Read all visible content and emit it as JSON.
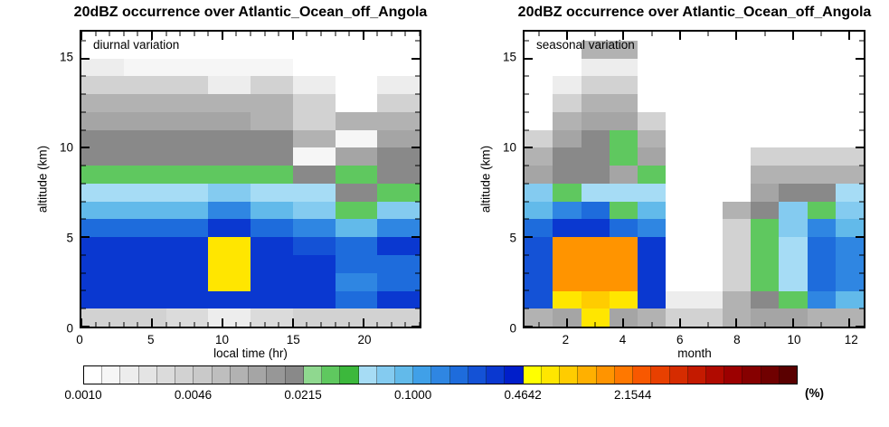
{
  "page": {
    "background": "#ffffff"
  },
  "chart_data": [
    {
      "type": "heatmap",
      "title": "20dBZ occurrence over Atlantic_Ocean_off_Angola",
      "annotation": "diurnal variation",
      "xlabel": "local time (hr)",
      "ylabel": "altitude (km)",
      "x_range": [
        0,
        24
      ],
      "y_range": [
        0,
        16.5
      ],
      "x_major_ticks": [
        0,
        5,
        10,
        15,
        20
      ],
      "x_minor_step": 1,
      "y_major_ticks": [
        0,
        5,
        10,
        15
      ],
      "y_minor_step": 1,
      "x_edges": [
        0,
        3,
        6,
        9,
        12,
        15,
        18,
        21,
        24
      ],
      "y_edges": [
        0,
        1,
        2,
        3,
        4,
        5,
        6,
        7,
        8,
        9,
        10,
        11,
        12,
        13,
        14,
        15,
        16
      ],
      "values_percent_rows_bottom_to_top": [
        [
          0.004,
          0.004,
          0.003,
          0.002,
          0.003,
          0.004,
          0.004,
          0.004
        ],
        [
          0.3,
          0.3,
          0.3,
          0.3,
          0.3,
          0.3,
          0.2,
          0.3
        ],
        [
          0.3,
          0.3,
          0.3,
          0.6,
          0.3,
          0.3,
          0.13,
          0.2
        ],
        [
          0.3,
          0.3,
          0.3,
          0.6,
          0.3,
          0.3,
          0.2,
          0.2
        ],
        [
          0.3,
          0.3,
          0.3,
          0.6,
          0.3,
          0.25,
          0.2,
          0.3
        ],
        [
          0.2,
          0.2,
          0.2,
          0.3,
          0.2,
          0.13,
          0.09,
          0.13
        ],
        [
          0.09,
          0.09,
          0.09,
          0.13,
          0.09,
          0.07,
          0.035,
          0.07
        ],
        [
          0.05,
          0.05,
          0.05,
          0.07,
          0.05,
          0.05,
          0.018,
          0.035
        ],
        [
          0.035,
          0.035,
          0.035,
          0.035,
          0.035,
          0.018,
          0.035,
          0.018
        ],
        [
          0.018,
          0.018,
          0.018,
          0.018,
          0.018,
          0.0015,
          0.012,
          0.018
        ],
        [
          0.018,
          0.018,
          0.018,
          0.018,
          0.018,
          0.008,
          0.0015,
          0.012
        ],
        [
          0.012,
          0.012,
          0.012,
          0.012,
          0.008,
          0.004,
          0.008,
          0.008
        ],
        [
          0.008,
          0.008,
          0.008,
          0.008,
          0.008,
          0.004,
          null,
          0.004
        ],
        [
          0.004,
          0.004,
          0.004,
          0.002,
          0.004,
          0.002,
          null,
          0.002
        ],
        [
          0.002,
          0.0015,
          0.0015,
          0.0015,
          0.0015,
          null,
          null,
          null
        ],
        [
          null,
          null,
          null,
          null,
          null,
          null,
          null,
          null
        ]
      ]
    },
    {
      "type": "heatmap",
      "title": "20dBZ occurrence over Atlantic_Ocean_off_Angola",
      "annotation": "seasonal variation",
      "xlabel": "month",
      "ylabel": "altitude (km)",
      "x_range": [
        0.5,
        12.5
      ],
      "y_range": [
        0,
        16.5
      ],
      "x_major_ticks": [
        2,
        4,
        6,
        8,
        10,
        12
      ],
      "x_minor_step": 1,
      "y_major_ticks": [
        0,
        5,
        10,
        15
      ],
      "y_minor_step": 1,
      "x_edges": [
        0.5,
        1.5,
        2.5,
        3.5,
        4.5,
        5.5,
        6.5,
        7.5,
        8.5,
        9.5,
        10.5,
        11.5,
        12.5
      ],
      "y_edges": [
        0,
        1,
        2,
        3,
        4,
        5,
        6,
        7,
        8,
        9,
        10,
        11,
        12,
        13,
        14,
        15,
        16
      ],
      "values_percent_rows_bottom_to_top": [
        [
          0.008,
          0.012,
          0.6,
          0.012,
          0.008,
          0.004,
          0.004,
          0.008,
          0.012,
          0.012,
          0.008,
          0.008
        ],
        [
          0.25,
          0.6,
          0.9,
          0.6,
          0.3,
          0.002,
          0.002,
          0.008,
          0.018,
          0.035,
          0.13,
          0.09
        ],
        [
          0.25,
          1.5,
          1.5,
          1.5,
          0.3,
          null,
          null,
          0.004,
          0.035,
          0.05,
          0.2,
          0.13
        ],
        [
          0.25,
          1.5,
          1.5,
          1.5,
          0.3,
          null,
          null,
          0.004,
          0.035,
          0.05,
          0.2,
          0.13
        ],
        [
          0.25,
          1.5,
          1.5,
          1.5,
          0.3,
          null,
          null,
          0.004,
          0.035,
          0.05,
          0.2,
          0.13
        ],
        [
          0.2,
          0.3,
          0.3,
          0.2,
          0.13,
          null,
          null,
          0.004,
          0.035,
          0.07,
          0.13,
          0.09
        ],
        [
          0.09,
          0.13,
          0.2,
          0.035,
          0.09,
          null,
          null,
          0.008,
          0.018,
          0.07,
          0.035,
          0.07
        ],
        [
          0.07,
          0.035,
          0.05,
          0.05,
          0.05,
          null,
          null,
          null,
          0.012,
          0.018,
          0.018,
          0.05
        ],
        [
          0.012,
          0.018,
          0.018,
          0.012,
          0.035,
          null,
          null,
          null,
          0.008,
          0.008,
          0.008,
          0.008
        ],
        [
          0.008,
          0.018,
          0.018,
          0.035,
          0.012,
          null,
          null,
          null,
          0.004,
          0.004,
          0.004,
          0.004
        ],
        [
          0.004,
          0.012,
          0.018,
          0.035,
          0.008,
          null,
          null,
          null,
          null,
          null,
          null,
          null
        ],
        [
          null,
          0.008,
          0.012,
          0.012,
          0.004,
          null,
          null,
          null,
          null,
          null,
          null,
          null
        ],
        [
          null,
          0.004,
          0.008,
          0.008,
          null,
          null,
          null,
          null,
          null,
          null,
          null,
          null
        ],
        [
          null,
          0.002,
          0.004,
          0.004,
          null,
          null,
          null,
          null,
          null,
          null,
          null,
          null
        ],
        [
          null,
          null,
          0.002,
          0.002,
          null,
          null,
          null,
          null,
          null,
          null,
          null,
          null
        ],
        [
          null,
          null,
          0.008,
          0.008,
          null,
          null,
          null,
          null,
          null,
          null,
          null,
          null
        ]
      ]
    }
  ],
  "colorbar": {
    "scale": "log10",
    "range_percent": [
      0.001,
      21.544
    ],
    "tick_labels": [
      "0.0010",
      "0.0046",
      "0.0215",
      "0.1000",
      "0.4642",
      "2.1544"
    ],
    "unit_label": "(%)",
    "colors": [
      "#ffffff",
      "#f6f6f6",
      "#ededed",
      "#e4e4e4",
      "#dbdbdb",
      "#d2d2d2",
      "#c9c9c9",
      "#bebebe",
      "#b2b2b2",
      "#a5a5a5",
      "#979797",
      "#898989",
      "#8fd88f",
      "#5fc85f",
      "#3cb83c",
      "#a6dcf5",
      "#84cbf0",
      "#62baea",
      "#40a0e8",
      "#2f86e2",
      "#1e6cdc",
      "#1452d6",
      "#0a38d0",
      "#001eca",
      "#ffff00",
      "#ffe600",
      "#ffcc00",
      "#ffb000",
      "#ff9400",
      "#ff7800",
      "#f85800",
      "#e84000",
      "#d62c00",
      "#c41a00",
      "#b00a00",
      "#9c0000",
      "#860000",
      "#700000",
      "#5a0000"
    ]
  }
}
